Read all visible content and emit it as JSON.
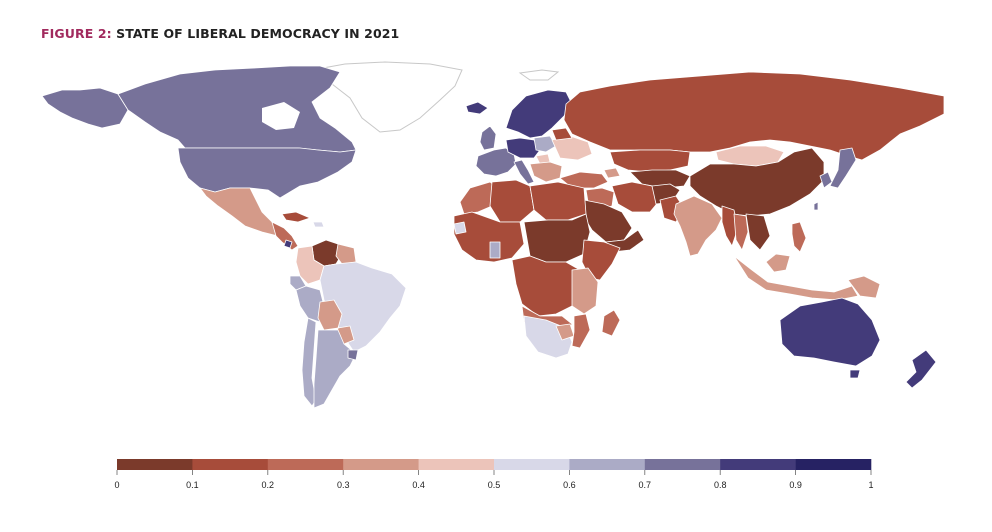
{
  "title": {
    "label": "FIGURE 2:",
    "text": " STATE OF LIBERAL DEMOCRACY IN 2021"
  },
  "legend": {
    "ticks": [
      "0",
      "0.1",
      "0.2",
      "0.3",
      "0.4",
      "0.5",
      "0.6",
      "0.7",
      "0.8",
      "0.9",
      "1"
    ],
    "colors": [
      "#7b3a2b",
      "#a74c3a",
      "#bd6a58",
      "#d49a89",
      "#ecc4ba",
      "#d8d8e8",
      "#ababc6",
      "#77729a",
      "#433b7a",
      "#262263"
    ]
  },
  "map": {
    "no_data_color": "#ffffff",
    "no_data_stroke": "#c8c8c8"
  }
}
